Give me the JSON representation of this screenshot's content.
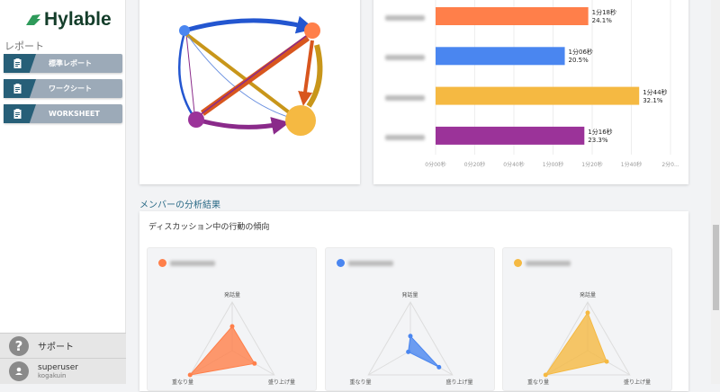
{
  "brand": {
    "name": "Hylable",
    "accent": "#2e9a5a"
  },
  "sidebar": {
    "section": "レポート",
    "items": [
      {
        "label": "標準レポート",
        "icon": "clipboard-icon"
      },
      {
        "label": "ワークシート",
        "icon": "clipboard-icon"
      },
      {
        "label": "WORKSHEET",
        "icon": "clipboard-icon"
      }
    ],
    "support": "サポート",
    "user": {
      "name": "superuser",
      "org": "kogakuin"
    }
  },
  "chart_data": [
    {
      "type": "network",
      "nodes": [
        {
          "color": "#4a86f0"
        },
        {
          "color": "#ff7f4a"
        },
        {
          "color": "#9b3399"
        },
        {
          "color": "#f5b942"
        }
      ]
    },
    {
      "type": "bar",
      "orientation": "horizontal",
      "x_ticks": [
        "0分00秒",
        "0分20秒",
        "0分40秒",
        "1分00秒",
        "1分20秒",
        "1分40秒",
        "2分0..."
      ],
      "xlim_seconds": [
        0,
        120
      ],
      "bars": [
        {
          "seconds": 78,
          "label": "1分18秒",
          "percent": "24.1%",
          "color": "#ff7f4a"
        },
        {
          "seconds": 66,
          "label": "1分06秒",
          "percent": "20.5%",
          "color": "#4a86f0"
        },
        {
          "seconds": 104,
          "label": "1分44秒",
          "percent": "32.1%",
          "color": "#f5b942"
        },
        {
          "seconds": 76,
          "label": "1分16秒",
          "percent": "23.3%",
          "color": "#9b3399"
        }
      ]
    },
    {
      "type": "radar",
      "axes": [
        "発話量",
        "盛り上げ量",
        "重なり量"
      ],
      "members": [
        {
          "color": "#ff7f4a",
          "values": [
            0.5,
            0.53,
            1.0
          ]
        },
        {
          "color": "#4a86f0",
          "values": [
            0.3,
            0.68,
            0.05
          ]
        },
        {
          "color": "#f5b942",
          "values": [
            0.78,
            0.45,
            1.0
          ]
        }
      ]
    }
  ],
  "main": {
    "section_title": "メンバーの分析結果",
    "card_title": "ディスカッション中の行動の傾向"
  }
}
